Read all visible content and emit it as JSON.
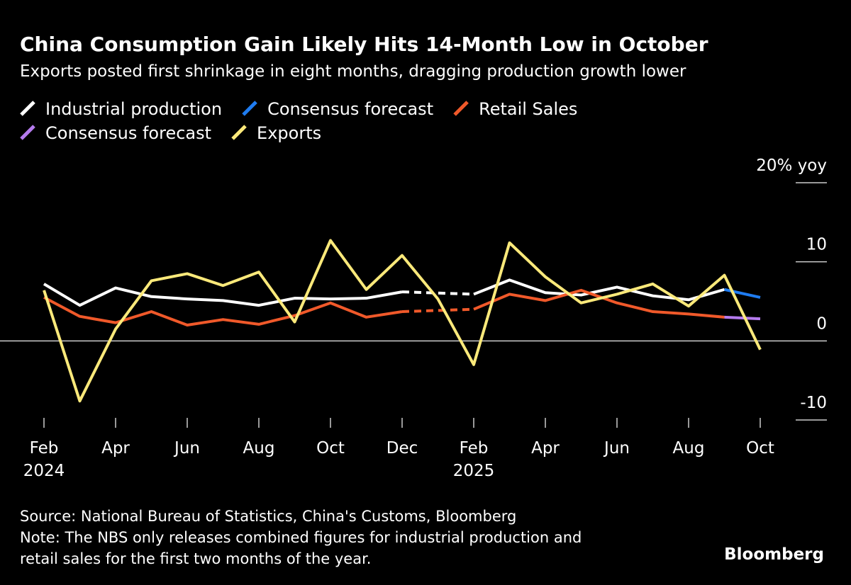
{
  "chart_data": {
    "type": "line",
    "title": "China Consumption Gain Likely Hits 14-Month Low in October",
    "subtitle": "Exports posted first shrinkage in eight months, dragging production growth lower",
    "categories": [
      "Feb",
      null,
      "Apr",
      null,
      "Jun",
      null,
      "Aug",
      null,
      "Oct",
      null,
      "Dec",
      null,
      "Feb",
      null,
      "Apr",
      null,
      "Jun",
      null,
      "Aug",
      null,
      "Oct"
    ],
    "category_years": [
      "2024",
      null,
      null,
      null,
      null,
      null,
      null,
      null,
      null,
      null,
      null,
      null,
      "2025",
      null,
      null,
      null,
      null,
      null,
      null,
      null,
      null
    ],
    "series": [
      {
        "name": "Industrial production",
        "color": "#ffffff",
        "values": [
          7.2,
          4.5,
          6.7,
          5.6,
          5.3,
          5.1,
          4.5,
          5.4,
          5.3,
          5.4,
          6.2,
          null,
          5.9,
          7.7,
          6.1,
          5.8,
          6.8,
          5.7,
          5.2,
          6.5,
          null
        ]
      },
      {
        "name": "Consensus forecast",
        "color": "#1f7cf0",
        "values": [
          null,
          null,
          null,
          null,
          null,
          null,
          null,
          null,
          null,
          null,
          null,
          null,
          null,
          null,
          null,
          null,
          null,
          null,
          null,
          6.5,
          5.5
        ]
      },
      {
        "name": "Retail Sales",
        "color": "#f0592a",
        "values": [
          5.5,
          3.1,
          2.3,
          3.7,
          2.0,
          2.7,
          2.1,
          3.2,
          4.8,
          3.0,
          3.7,
          null,
          4.0,
          5.9,
          5.1,
          6.4,
          4.8,
          3.7,
          3.4,
          3.0,
          null
        ]
      },
      {
        "name": "Consensus forecast",
        "color": "#b57bee",
        "values": [
          null,
          null,
          null,
          null,
          null,
          null,
          null,
          null,
          null,
          null,
          null,
          null,
          null,
          null,
          null,
          null,
          null,
          null,
          null,
          3.0,
          2.8
        ]
      },
      {
        "name": "Exports",
        "color": "#fbe97a",
        "values": [
          6.4,
          -7.6,
          1.5,
          7.6,
          8.5,
          7.0,
          8.7,
          2.4,
          12.7,
          6.5,
          10.8,
          5.3,
          -3.0,
          12.4,
          8.1,
          4.8,
          5.9,
          7.2,
          4.4,
          8.3,
          -1.1
        ]
      }
    ],
    "gap_style": "dashed",
    "ylim": [
      -10,
      20
    ],
    "yticks": [
      -10,
      {
        "value": 0,
        "label": "0"
      },
      10,
      {
        "value": 20,
        "label": "20% yoy"
      }
    ],
    "source": "Source: National Bureau of Statistics, China's Customs, Bloomberg",
    "note": [
      "Note: The NBS only releases combined figures for industrial production and",
      "retail sales for the first two months of the year."
    ],
    "brand": "Bloomberg"
  }
}
